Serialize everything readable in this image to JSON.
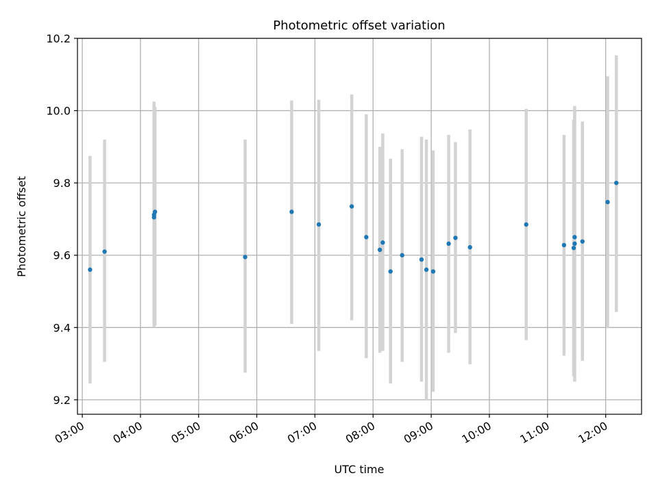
{
  "chart_data": {
    "type": "scatter",
    "title": "Photometric offset variation",
    "xlabel": "UTC time",
    "ylabel": "Photometric offset",
    "grid": true,
    "xlim": [
      "02:55",
      "12:37"
    ],
    "ylim": [
      9.16,
      10.2
    ],
    "x_ticks": [
      "03:00",
      "04:00",
      "05:00",
      "06:00",
      "07:00",
      "08:00",
      "09:00",
      "10:00",
      "11:00",
      "12:00"
    ],
    "y_ticks": [
      "9.2",
      "9.4",
      "9.6",
      "9.8",
      "10.0",
      "10.2"
    ],
    "y_tick_values": [
      9.2,
      9.4,
      9.6,
      9.8,
      10.0,
      10.2
    ],
    "colors": {
      "points": "#1f77b4",
      "error_bars": "#d3d3d3",
      "grid": "#b0b0b0"
    },
    "points": [
      {
        "t": "03:08",
        "y": 9.56,
        "lo": 9.245,
        "hi": 9.875
      },
      {
        "t": "03:23",
        "y": 9.61,
        "lo": 9.305,
        "hi": 9.92
      },
      {
        "t": "04:14",
        "y": 9.705,
        "lo": 9.4,
        "hi": 10.025
      },
      {
        "t": "04:14",
        "y": 9.712,
        "lo": 9.4,
        "hi": 10.02
      },
      {
        "t": "04:15",
        "y": 9.72,
        "lo": 9.405,
        "hi": 10.01
      },
      {
        "t": "05:48",
        "y": 9.595,
        "lo": 9.275,
        "hi": 9.92
      },
      {
        "t": "06:36",
        "y": 9.72,
        "lo": 9.41,
        "hi": 10.028
      },
      {
        "t": "07:04",
        "y": 9.685,
        "lo": 9.335,
        "hi": 10.03
      },
      {
        "t": "07:38",
        "y": 9.735,
        "lo": 9.42,
        "hi": 10.045
      },
      {
        "t": "07:53",
        "y": 9.65,
        "lo": 9.315,
        "hi": 9.99
      },
      {
        "t": "08:07",
        "y": 9.615,
        "lo": 9.33,
        "hi": 9.9
      },
      {
        "t": "08:10",
        "y": 9.635,
        "lo": 9.335,
        "hi": 9.937
      },
      {
        "t": "08:18",
        "y": 9.555,
        "lo": 9.245,
        "hi": 9.867
      },
      {
        "t": "08:30",
        "y": 9.6,
        "lo": 9.305,
        "hi": 9.893
      },
      {
        "t": "08:50",
        "y": 9.588,
        "lo": 9.25,
        "hi": 9.928
      },
      {
        "t": "08:55",
        "y": 9.56,
        "lo": 9.2,
        "hi": 9.92
      },
      {
        "t": "09:02",
        "y": 9.555,
        "lo": 9.222,
        "hi": 9.89
      },
      {
        "t": "09:18",
        "y": 9.632,
        "lo": 9.33,
        "hi": 9.933
      },
      {
        "t": "09:25",
        "y": 9.648,
        "lo": 9.385,
        "hi": 9.913
      },
      {
        "t": "09:40",
        "y": 9.622,
        "lo": 9.298,
        "hi": 9.948
      },
      {
        "t": "10:38",
        "y": 9.685,
        "lo": 9.365,
        "hi": 10.005
      },
      {
        "t": "11:17",
        "y": 9.628,
        "lo": 9.322,
        "hi": 9.933
      },
      {
        "t": "11:27",
        "y": 9.62,
        "lo": 9.265,
        "hi": 9.975
      },
      {
        "t": "11:28",
        "y": 9.632,
        "lo": 9.25,
        "hi": 10.013
      },
      {
        "t": "11:28",
        "y": 9.65,
        "lo": 9.27,
        "hi": 10.0
      },
      {
        "t": "11:36",
        "y": 9.638,
        "lo": 9.308,
        "hi": 9.97
      },
      {
        "t": "12:02",
        "y": 9.747,
        "lo": 9.398,
        "hi": 10.095
      },
      {
        "t": "12:11",
        "y": 9.8,
        "lo": 9.443,
        "hi": 10.153
      }
    ]
  }
}
